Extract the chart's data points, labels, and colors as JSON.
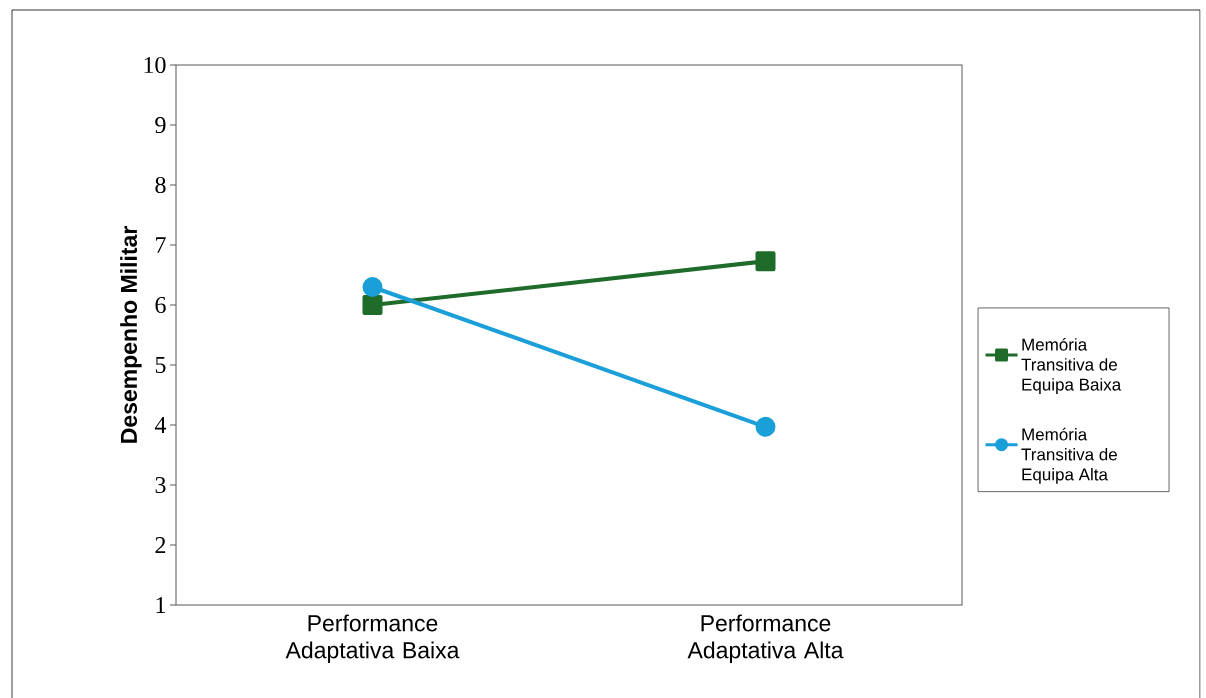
{
  "chart_data": {
    "type": "line",
    "ylabel": "Desempenho Militar",
    "categories": [
      "Performance Adaptativa Baixa",
      "Performance Adaptativa Alta"
    ],
    "series": [
      {
        "name": "Memória Transitiva de Equipa Baixa",
        "color": "#1e6b2a",
        "marker": "square",
        "values": [
          6.0,
          6.73
        ]
      },
      {
        "name": "Memória Transitiva de Equipa Alta",
        "color": "#1a9fd8",
        "marker": "circle",
        "values": [
          6.3,
          3.97
        ]
      }
    ],
    "ylim": [
      1,
      10
    ],
    "yticks": [
      1,
      2,
      3,
      4,
      5,
      6,
      7,
      8,
      9,
      10
    ],
    "grid": false,
    "legend": "right"
  }
}
